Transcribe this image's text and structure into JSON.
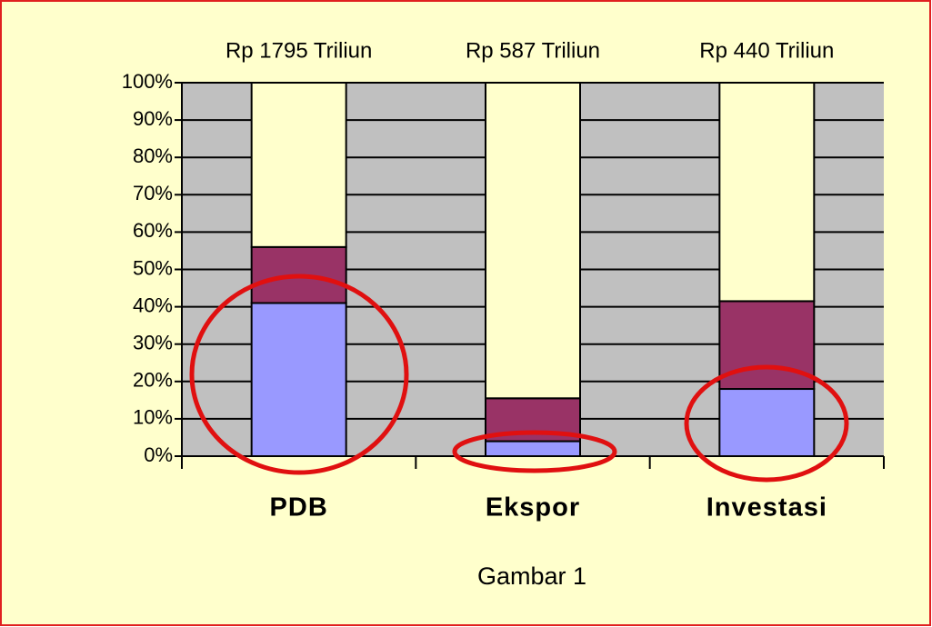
{
  "chart_data": {
    "type": "stacked_bar",
    "categories": [
      "PDB",
      "Ekspor",
      "Investasi"
    ],
    "bar_labels": [
      "Rp 1795 Triliun",
      "Rp 587 Triliun",
      "Rp 440 Triliun"
    ],
    "series": [
      {
        "color": "#9999ff",
        "values": [
          41,
          4,
          18
        ]
      },
      {
        "color": "#993366",
        "values": [
          15,
          11.5,
          23.5
        ]
      },
      {
        "color": "#ffffcc",
        "values": [
          44,
          84.5,
          58.5
        ]
      }
    ],
    "ylim": [
      0,
      100
    ],
    "yticks": [
      {
        "value": 0,
        "label": "0%"
      },
      {
        "value": 10,
        "label": "10%"
      },
      {
        "value": 20,
        "label": "20%"
      },
      {
        "value": 30,
        "label": "30%"
      },
      {
        "value": 40,
        "label": "40%"
      },
      {
        "value": 50,
        "label": "50%"
      },
      {
        "value": 60,
        "label": "60%"
      },
      {
        "value": 70,
        "label": "70%"
      },
      {
        "value": 80,
        "label": "80%"
      },
      {
        "value": 90,
        "label": "90%"
      },
      {
        "value": 100,
        "label": "100%"
      }
    ],
    "grid": true,
    "plot_background": "#c0c0c0",
    "caption": "Gambar 1"
  }
}
